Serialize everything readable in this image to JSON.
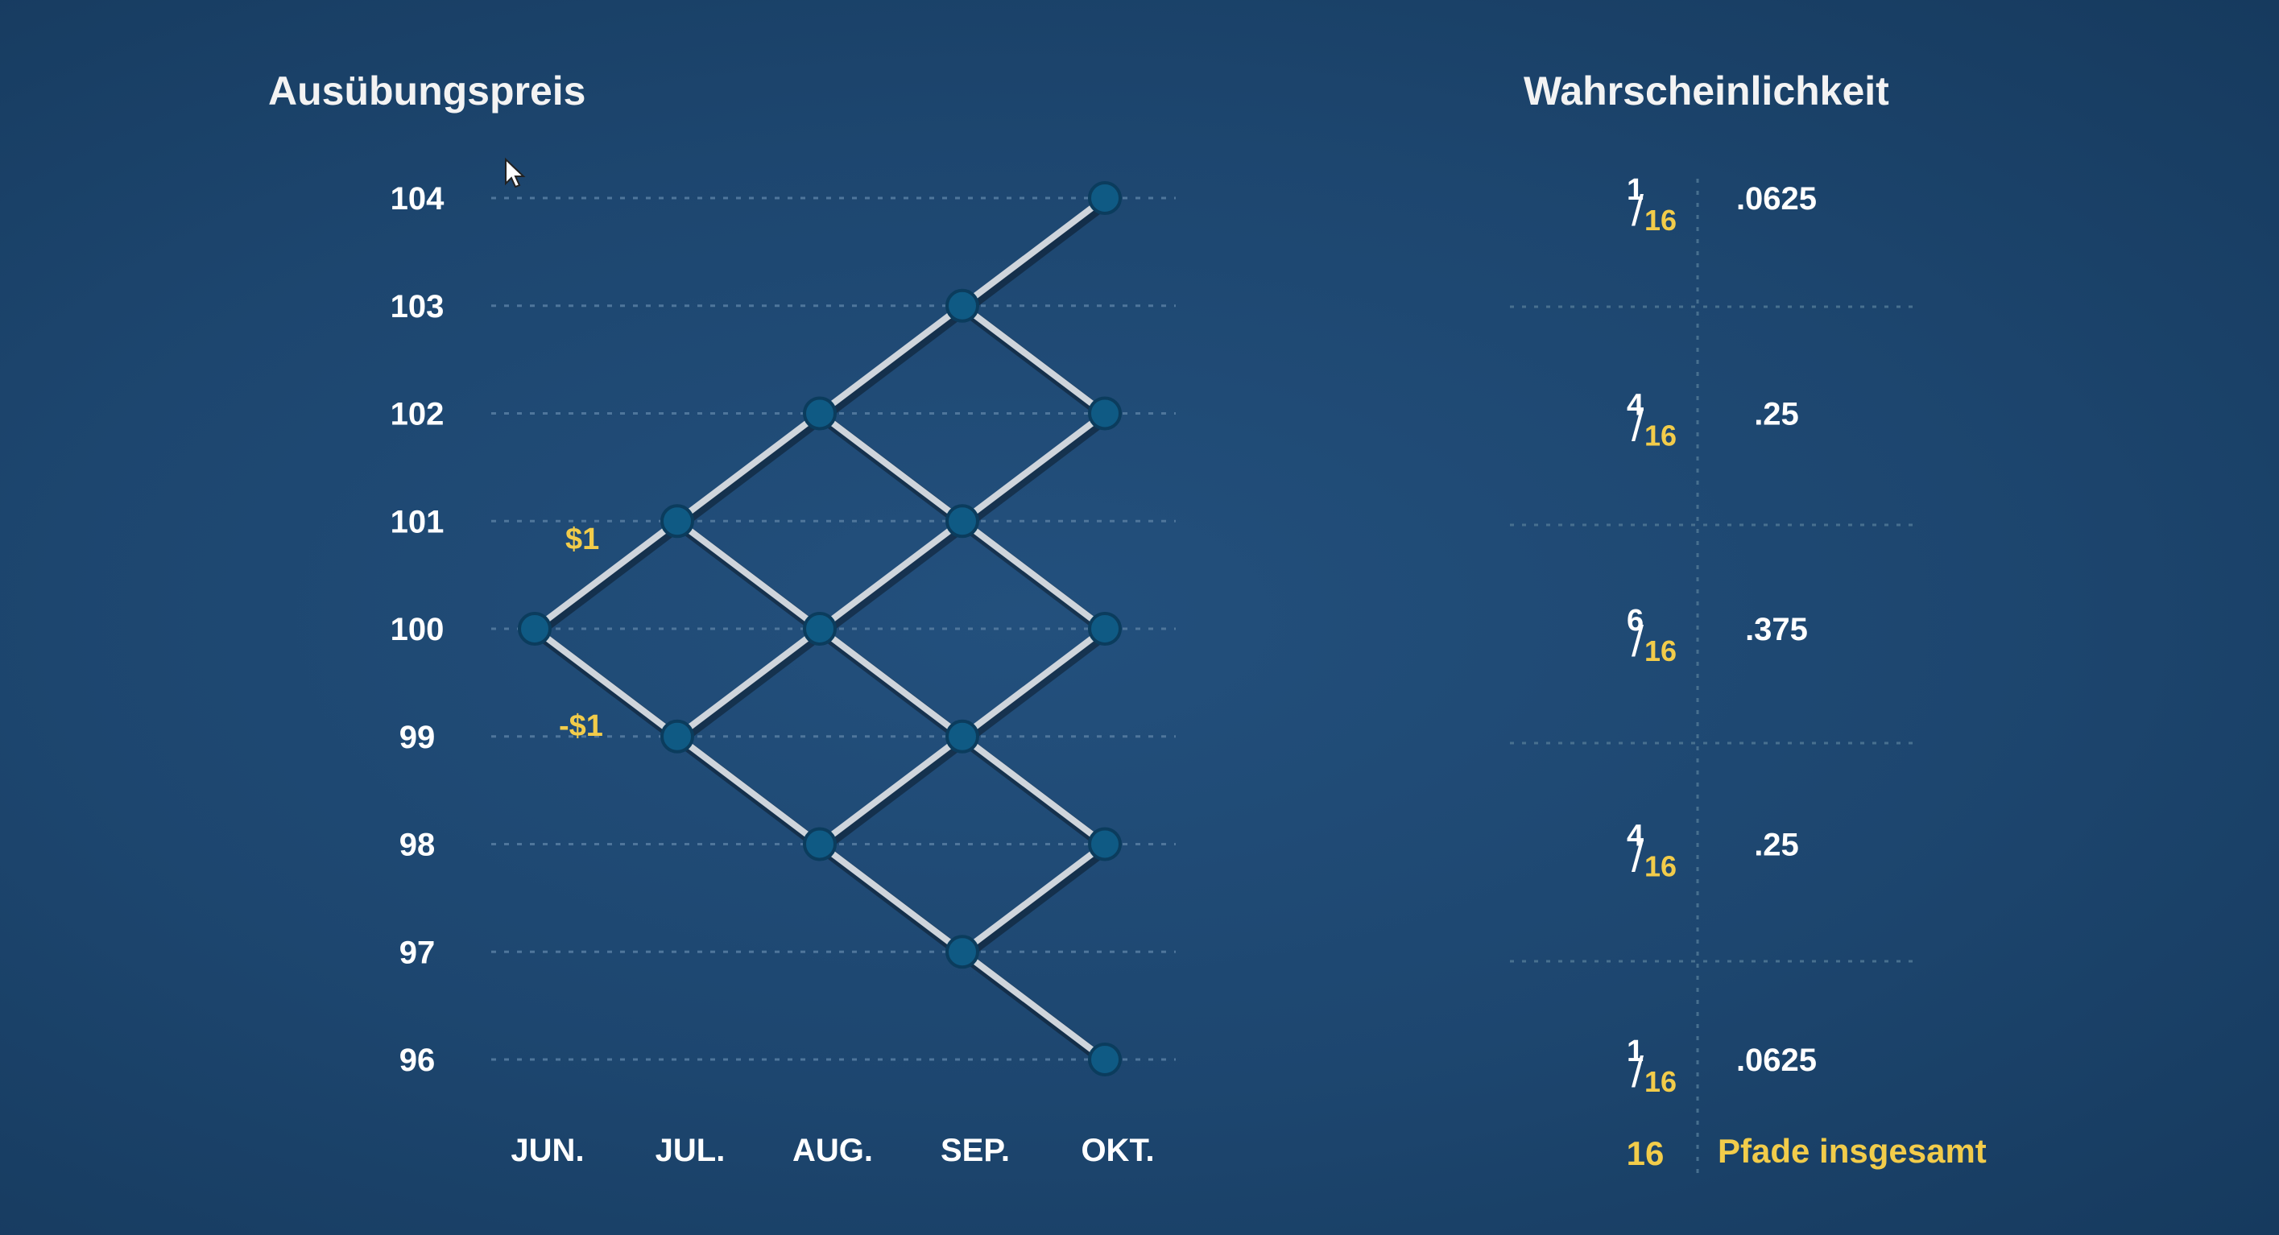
{
  "titles": {
    "strike_price": "Ausübungspreis",
    "probability": "Wahrscheinlichkeit"
  },
  "tree": {
    "price_levels": [
      "104",
      "103",
      "102",
      "101",
      "100",
      "99",
      "98",
      "97",
      "96"
    ],
    "months": [
      "JUN.",
      "JUL.",
      "AUG.",
      "SEP.",
      "OKT."
    ],
    "start_price": 100,
    "step": 1,
    "up_move_label": "$1",
    "down_move_label": "-$1"
  },
  "probabilities": [
    {
      "numerator": "1",
      "denominator": "16",
      "decimal": ".0625",
      "price": 104
    },
    {
      "numerator": "4",
      "denominator": "16",
      "decimal": ".25",
      "price": 102
    },
    {
      "numerator": "6",
      "denominator": "16",
      "decimal": ".375",
      "price": 100
    },
    {
      "numerator": "4",
      "denominator": "16",
      "decimal": ".25",
      "price": 98
    },
    {
      "numerator": "1",
      "denominator": "16",
      "decimal": ".0625",
      "price": 96
    }
  ],
  "total": {
    "count": "16",
    "label": "Pfade insgesamt"
  },
  "colors": {
    "background": "#1d466f",
    "accent_yellow": "#f2cc4a",
    "node_fill": "#0f5a84",
    "edge": "#cfd5dc"
  }
}
